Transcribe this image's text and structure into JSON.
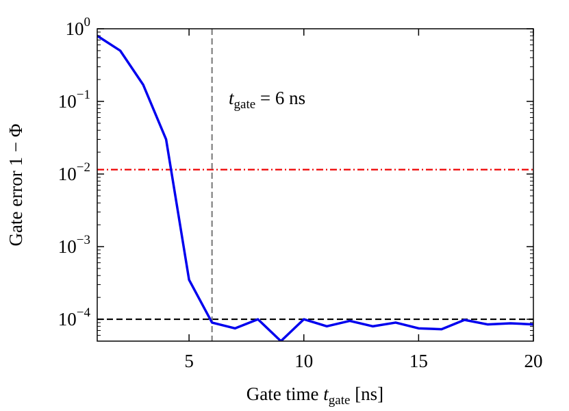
{
  "chart_data": {
    "type": "line",
    "ylabel": "Gate error 1 − Φ",
    "xlabel": {
      "main": "Gate time ",
      "var": "t",
      "sub": "gate",
      "rest": " [ns]"
    },
    "annotation": {
      "var": "t",
      "sub": "gate",
      "rest": " = 6 ns"
    },
    "x": [
      1,
      2,
      3,
      4,
      5,
      6,
      7,
      8,
      9,
      10,
      11,
      12,
      13,
      14,
      15,
      16,
      17,
      18,
      19,
      20
    ],
    "series": [
      {
        "color": "#0000ee",
        "values": [
          0.8,
          0.5,
          0.17,
          0.03,
          0.00035,
          9e-05,
          7.5e-05,
          0.0001,
          5e-05,
          0.0001,
          8e-05,
          9.5e-05,
          8e-05,
          9e-05,
          7.5e-05,
          7.3e-05,
          9.8e-05,
          8.5e-05,
          8.8e-05,
          8.5e-05
        ]
      }
    ],
    "xlim": [
      1,
      20
    ],
    "xticks": [
      5,
      10,
      15,
      20
    ],
    "ylim": [
      5e-05,
      1
    ],
    "yscale": "log",
    "yticks": [
      {
        "value": 1,
        "base": "10",
        "exp": "0"
      },
      {
        "value": 0.1,
        "base": "10",
        "exp": "−1"
      },
      {
        "value": 0.01,
        "base": "10",
        "exp": "−2"
      },
      {
        "value": 0.001,
        "base": "10",
        "exp": "−3"
      },
      {
        "value": 0.0001,
        "base": "10",
        "exp": "−4"
      }
    ],
    "hlines": [
      {
        "value": 0.0115,
        "color": "#ee0000",
        "style": "dashdot"
      },
      {
        "value": 0.0001,
        "color": "#000000",
        "style": "dashed"
      }
    ],
    "vlines": [
      {
        "value": 6,
        "color": "#808080",
        "style": "dashed"
      }
    ]
  }
}
